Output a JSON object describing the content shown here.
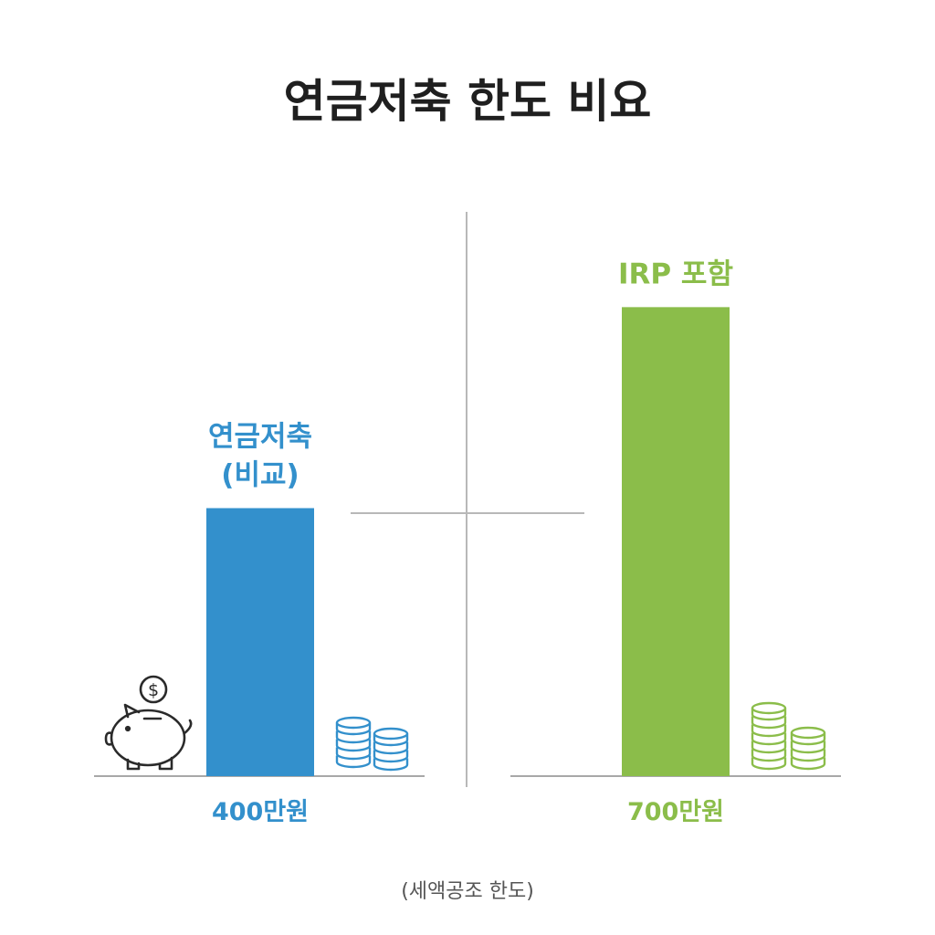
{
  "chart_data": {
    "type": "bar",
    "title": "연금저축 한도 비요",
    "categories": [
      "연금저축 (비교)",
      "IRP 포함"
    ],
    "category_label_lines": [
      [
        "연금저축",
        "(비교)"
      ],
      [
        "IRP 포함"
      ]
    ],
    "values": [
      400,
      700
    ],
    "value_labels": [
      "400만원",
      "700만원"
    ],
    "unit": "만원",
    "colors": [
      "#3390cc",
      "#8bbd4a"
    ],
    "footnote": "(세액공조 한도)",
    "ylim": [
      0,
      770
    ],
    "grid": false
  },
  "icons": [
    "piggy-bank-icon",
    "coin-stack-icon",
    "coin-stack-icon"
  ]
}
